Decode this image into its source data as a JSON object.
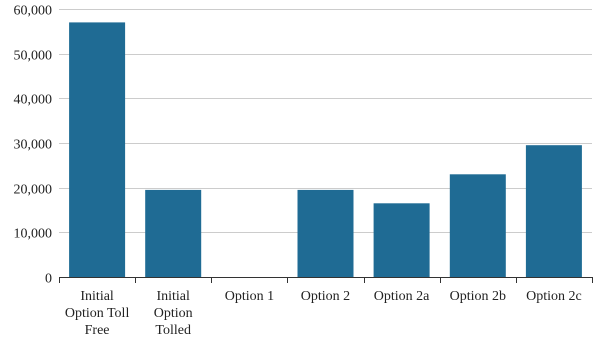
{
  "chart_data": {
    "type": "bar",
    "title": "",
    "xlabel": "",
    "ylabel": "",
    "categories": [
      [
        "Initial",
        "Option Toll",
        "Free"
      ],
      [
        "Initial",
        "Option",
        "Tolled"
      ],
      [
        "Option 1"
      ],
      [
        "Option 2"
      ],
      [
        "Option 2a"
      ],
      [
        "Option 2b"
      ],
      [
        "Option 2c"
      ]
    ],
    "values": [
      57000,
      19500,
      0,
      19500,
      16500,
      23000,
      29500
    ],
    "ylim": [
      0,
      60000
    ],
    "yticks": [
      0,
      10000,
      20000,
      30000,
      40000,
      50000,
      60000
    ],
    "ytick_labels": [
      "0",
      "10,000",
      "20,000",
      "30,000",
      "40,000",
      "50,000",
      "60,000"
    ],
    "grid": true,
    "legend": "none",
    "bar_color": "#1f6b94",
    "grid_color": "#cccccc",
    "axis_color": "#333333"
  }
}
